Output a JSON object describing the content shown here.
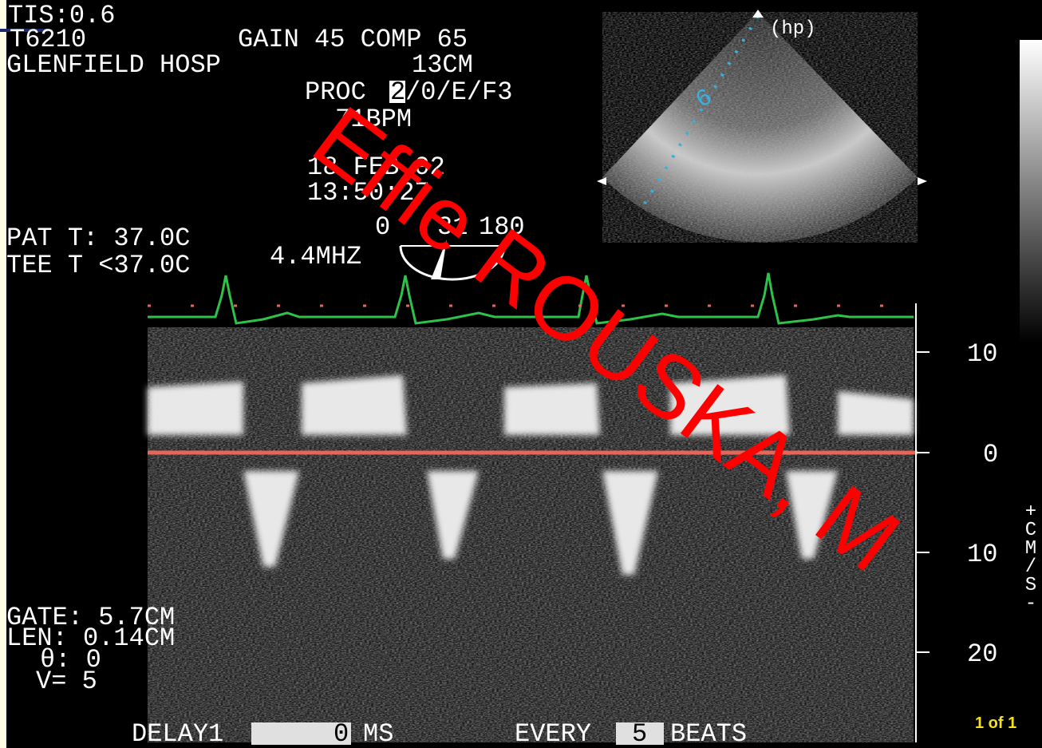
{
  "header": {
    "tis": "TIS:0.6",
    "probe": "T6210",
    "gain": "GAIN 45 COMP 65",
    "site": "GLENFIELD HOSP",
    "depth": "13CM",
    "proc_label": "PROC",
    "proc_highlight": "2",
    "proc_rest": "/0/E/F3",
    "heart_rate": "71BPM",
    "date": "18 FEB 02",
    "time": "13:50:27",
    "angle_start": "0",
    "angle_mid": "31",
    "angle_end": "180",
    "frequency": "4.4MHZ",
    "hp": "(hp)",
    "sector_marker": "6"
  },
  "temperatures": {
    "patient": "PAT T: 37.0C",
    "tee": "TEE T <37.0C"
  },
  "gate": {
    "gate": "GATE:  5.7CM",
    "length": "LEN: 0.14CM",
    "theta": "θ: 0",
    "v": "V= 5"
  },
  "scale": {
    "labels": [
      "10",
      "0",
      "10",
      "20"
    ],
    "unit": "+CM/S-"
  },
  "footer": {
    "delay": "DELAY1",
    "delay_value": "0",
    "delay_unit": "MS",
    "every": "EVERY",
    "every_value": "5",
    "every_unit": "BEATS"
  },
  "slide_counter": "1 of 1",
  "watermark": "Effie ROUSKA, M"
}
